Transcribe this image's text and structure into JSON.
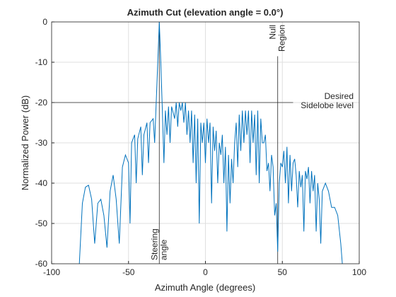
{
  "chart_data": {
    "type": "line",
    "title": "Azimuth Cut (elevation angle = 0.0°)",
    "xlabel": "Azimuth Angle (degrees)",
    "ylabel": "Normalized Power (dB)",
    "color": "#0072bd",
    "x": [
      -82,
      -80,
      -78,
      -76,
      -74,
      -72,
      -71,
      -70,
      -68,
      -66,
      -64,
      -62,
      -60,
      -58,
      -56,
      -54,
      -52,
      -50,
      -49,
      -48,
      -46,
      -45,
      -44,
      -42,
      -41,
      -40,
      -38,
      -37,
      -36,
      -34,
      -33,
      -32,
      -31,
      -30,
      -29,
      -28,
      -27,
      -26,
      -25,
      -24,
      -23,
      -22,
      -20,
      -19,
      -18,
      -17,
      -16,
      -15,
      -14,
      -13,
      -12,
      -11,
      -10,
      -9,
      -8,
      -7,
      -6,
      -5,
      -4,
      -3,
      -2,
      -1,
      0,
      1,
      2,
      3,
      4,
      5,
      6,
      7,
      8,
      9,
      10,
      11,
      12,
      13,
      14,
      15,
      16,
      17,
      18,
      19,
      20,
      21,
      22,
      23,
      24,
      25,
      26,
      27,
      28,
      29,
      30,
      31,
      32,
      33,
      34,
      35,
      36,
      37,
      38,
      39,
      40,
      41,
      42,
      43,
      44,
      45,
      46,
      47,
      48,
      49,
      50,
      51,
      52,
      53,
      54,
      55,
      56,
      57,
      58,
      59,
      60,
      61,
      62,
      63,
      64,
      65,
      66,
      67,
      68,
      69,
      70,
      71,
      72,
      73,
      74,
      75,
      76,
      78,
      80,
      82,
      84,
      86,
      88,
      89
    ],
    "values": [
      -60,
      -45,
      -41,
      -40.5,
      -44,
      -55,
      -50,
      -45,
      -44,
      -48,
      -56,
      -42,
      -38,
      -44,
      -55,
      -36,
      -33,
      -35,
      -50,
      -30,
      -28,
      -40,
      -29,
      -26,
      -38,
      -28,
      -25,
      -35,
      -25,
      -24,
      -30,
      -20,
      -10,
      0,
      -10,
      -22,
      -35,
      -22,
      -28,
      -21,
      -30,
      -21,
      -24,
      -20,
      -26,
      -20,
      -22,
      -20,
      -25,
      -20,
      -28,
      -22,
      -30,
      -22,
      -35,
      -23,
      -40,
      -24,
      -50,
      -25,
      -30,
      -25,
      -35,
      -24,
      -30,
      -25,
      -45,
      -26,
      -32,
      -27,
      -40,
      -30,
      -33,
      -28,
      -40,
      -31,
      -52,
      -33,
      -45,
      -34,
      -40,
      -30,
      -25,
      -36,
      -23,
      -32,
      -22,
      -30,
      -22,
      -28,
      -22,
      -35,
      -22,
      -30,
      -23,
      -38,
      -22,
      -40,
      -24,
      -30,
      -30,
      -28,
      -37,
      -35,
      -42,
      -33,
      -36,
      -48,
      -45,
      -57,
      -40,
      -35,
      -36,
      -32,
      -40,
      -31,
      -45,
      -33,
      -42,
      -35,
      -34,
      -38,
      -46,
      -37,
      -41,
      -38,
      -52,
      -37,
      -39,
      -36,
      -45,
      -37,
      -42,
      -38,
      -52,
      -40,
      -44,
      -55,
      -42,
      -40,
      -42,
      -46,
      -46,
      -48,
      -55,
      -60
    ],
    "xlim": [
      -100,
      100
    ],
    "xticks": [
      -100,
      -50,
      0,
      50,
      100
    ],
    "ylim": [
      -60,
      0
    ],
    "yticks": [
      0,
      -10,
      -20,
      -30,
      -40,
      -50,
      -60
    ],
    "grid": true,
    "vlines": [
      {
        "x": -30,
        "y_end": 0,
        "label": [
          "Steering",
          "angle"
        ]
      },
      {
        "x": 47,
        "y_end": -8.5,
        "label": [
          "Null",
          "Region"
        ]
      }
    ],
    "hline": {
      "y": -20,
      "x_end": 57,
      "label": [
        "Desired",
        "Sidelobe level"
      ]
    }
  }
}
